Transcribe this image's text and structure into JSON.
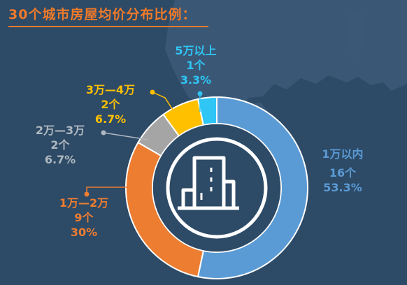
{
  "title": "30个城市房屋均价分布比例：",
  "colors": {
    "background": "#2d4a66",
    "title": "#f07a2a",
    "ring_gap": "#ffffff",
    "center": "#2d4a66",
    "icon": "#ffffff"
  },
  "chart_data": {
    "type": "pie",
    "style": "donut",
    "total": 30,
    "slices": [
      {
        "name": "1万以内",
        "count": "16个",
        "percent": "53.3%",
        "value": 16,
        "color": "#5b9bd5",
        "text_color": "#5b9bd5"
      },
      {
        "name": "1万—2万",
        "count": "9个",
        "percent": "30%",
        "value": 9,
        "color": "#ed7d31",
        "text_color": "#ed7d31"
      },
      {
        "name": "2万—3万",
        "count": "2个",
        "percent": "6.7%",
        "value": 2,
        "color": "#a5a5a5",
        "text_color": "#b0b8c0"
      },
      {
        "name": "3万—4万",
        "count": "2个",
        "percent": "6.7%",
        "value": 2,
        "color": "#ffc000",
        "text_color": "#ffc000"
      },
      {
        "name": "5万以上",
        "count": "1个",
        "percent": "3.3%",
        "value": 1,
        "color": "#2fc6f6",
        "text_color": "#2fc6f6"
      }
    ]
  }
}
